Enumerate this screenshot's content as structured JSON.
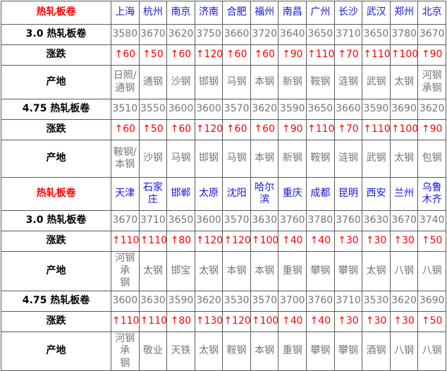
{
  "colors": {
    "section_title_red": "#fe0000",
    "change_red": "#fe0000",
    "city_blue": "#1414e0",
    "value_gray": "#757575",
    "label_black": "#000000",
    "border_gray": "#5a5a5a"
  },
  "table": {
    "blocks": [
      {
        "header_label": "热轧板卷",
        "cities": [
          "上海",
          "杭州",
          "南京",
          "济南",
          "合肥",
          "福州",
          "南昌",
          "广州",
          "长沙",
          "武汉",
          "郑州",
          "北京"
        ],
        "rows": [
          {
            "label": "3.0 热轧板卷",
            "type": "price",
            "values": [
              "3580",
              "3670",
              "3620",
              "3750",
              "3660",
              "3720",
              "3640",
              "3650",
              "3710",
              "3650",
              "3780",
              "3670"
            ]
          },
          {
            "label": "涨跌",
            "type": "change",
            "values": [
              "↑60",
              "↑50",
              "↑60",
              "↑120",
              "↑60",
              "↑60",
              "↑90",
              "↑110",
              "↑70",
              "↑110",
              "↑100",
              "↑90"
            ]
          },
          {
            "label": "产地",
            "type": "origin",
            "values": [
              "日照/\n通钢",
              "通钢",
              "沙钢",
              "邯钢",
              "马钢",
              "本钢",
              "新钢",
              "鞍钢",
              "涟钢",
              "武钢",
              "太钢",
              "河钢\n承钢"
            ]
          },
          {
            "label": "4.75 热轧板卷",
            "type": "price",
            "values": [
              "3510",
              "3550",
              "3600",
              "3600",
              "3570",
              "3620",
              "3590",
              "3650",
              "3660",
              "3590",
              "3690",
              "3620"
            ]
          },
          {
            "label": "涨跌",
            "type": "change",
            "values": [
              "↑60",
              "↑50",
              "↑60",
              "↑120",
              "↑60",
              "↑60",
              "↑90",
              "↑110",
              "↑70",
              "↑110",
              "↑100",
              "↑90"
            ]
          },
          {
            "label": "产地",
            "type": "origin",
            "values": [
              "鞍钢/\n本钢",
              "沙钢",
              "马钢",
              "邯钢",
              "马钢",
              "本钢",
              "新钢",
              "鞍钢",
              "涟钢",
              "武钢",
              "太钢",
              "包钢"
            ]
          }
        ]
      },
      {
        "header_label": "热轧板卷",
        "cities": [
          "天津",
          "石家\n庄",
          "邯郸",
          "太原",
          "沈阳",
          "哈尔\n滨",
          "重庆",
          "成都",
          "昆明",
          "西安",
          "兰州",
          "乌鲁\n木齐"
        ],
        "rows": [
          {
            "label": "3.0 热轧板卷",
            "type": "price",
            "values": [
              "3670",
              "3710",
              "3650",
              "3600",
              "3570",
              "3630",
              "3760",
              "3780",
              "3760",
              "3630",
              "3670",
              "3740"
            ]
          },
          {
            "label": "涨跌",
            "type": "change",
            "values": [
              "↑110",
              "↑110",
              "↑80",
              "↑120",
              "↑120",
              "↑100",
              "↑40",
              "↑40",
              "↑30",
              "↑30",
              "↑30",
              "↑50"
            ]
          },
          {
            "label": "产地",
            "type": "origin",
            "values": [
              "河钢承\n钢",
              "太钢",
              "邯宝",
              "太钢",
              "本钢",
              "本钢",
              "重钢",
              "攀钢",
              "攀钢",
              "太钢",
              "八钢",
              "八钢"
            ]
          },
          {
            "label": "4.75 热轧板卷",
            "type": "price",
            "values": [
              "3600",
              "3630",
              "3590",
              "3620",
              "3530",
              "3570",
              "3700",
              "3760",
              "3710",
              "3530",
              "3620",
              "3690"
            ]
          },
          {
            "label": "涨跌",
            "type": "change",
            "values": [
              "↑110",
              "↑110",
              "↑80",
              "↑130",
              "↑120",
              "↑100",
              "↑40",
              "↑40",
              "↑30",
              "↑30",
              "↑30",
              "↑50"
            ]
          },
          {
            "label": "产地",
            "type": "origin",
            "values": [
              "河钢承\n钢",
              "敬业",
              "天铁",
              "太钢",
              "鞍钢",
              "本钢",
              "重钢",
              "攀钢",
              "攀钢",
              "酒钢",
              "八钢",
              "八钢"
            ]
          }
        ]
      }
    ]
  }
}
